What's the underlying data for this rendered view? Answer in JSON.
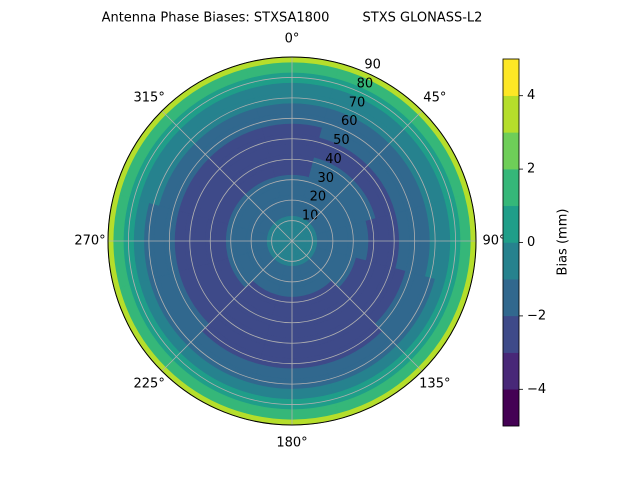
{
  "chart_data": {
    "type": "polar_contour",
    "title": "Antenna Phase Biases: STXSA1800        STXS GLONASS-L2",
    "zenith": [
      0,
      5,
      10,
      15,
      20,
      25,
      30,
      35,
      40,
      45,
      50,
      55,
      60,
      65,
      70,
      75,
      80,
      85,
      90
    ],
    "azimuth": [
      0,
      30,
      60,
      90,
      120,
      150,
      180,
      210,
      240,
      270,
      300,
      330
    ],
    "z": [
      [
        -0.5,
        -0.5,
        -0.5,
        -0.5,
        -0.5,
        -0.5,
        -0.5,
        -0.5,
        -0.5,
        -0.5,
        -0.5,
        -0.5
      ],
      [
        -0.6,
        -0.6,
        -0.6,
        -0.6,
        -0.6,
        -0.6,
        -0.6,
        -0.6,
        -0.6,
        -0.6,
        -0.6,
        -0.6
      ],
      [
        -0.8,
        -0.8,
        -0.8,
        -0.8,
        -0.8,
        -0.8,
        -0.8,
        -0.8,
        -0.8,
        -0.8,
        -0.8,
        -0.8
      ],
      [
        -1.1,
        -1.1,
        -1.1,
        -1.1,
        -1.1,
        -1.1,
        -1.1,
        -1.1,
        -1.1,
        -1.1,
        -1.1,
        -1.1
      ],
      [
        -1.4,
        -1.1,
        -1.1,
        -1.2,
        -1.5,
        -1.7,
        -1.7,
        -1.6,
        -1.5,
        -1.5,
        -1.4,
        -1.4
      ],
      [
        -1.7,
        -1.4,
        -1.4,
        -1.5,
        -1.8,
        -2.0,
        -2.0,
        -1.9,
        -1.8,
        -1.8,
        -1.7,
        -1.7
      ],
      [
        -1.9,
        -1.6,
        -1.6,
        -1.7,
        -2.0,
        -2.2,
        -2.2,
        -2.1,
        -2.0,
        -2.0,
        -1.9,
        -1.9
      ],
      [
        -2.1,
        -1.8,
        -1.8,
        -1.9,
        -2.2,
        -2.4,
        -2.4,
        -2.3,
        -2.2,
        -2.2,
        -2.1,
        -2.1
      ],
      [
        -2.3,
        -2.0,
        -2.0,
        -2.1,
        -2.4,
        -2.6,
        -2.6,
        -2.5,
        -2.4,
        -2.4,
        -2.3,
        -2.3
      ],
      [
        -2.5,
        -2.2,
        -2.2,
        -2.3,
        -2.6,
        -2.8,
        -2.8,
        -2.7,
        -2.6,
        -2.6,
        -2.5,
        -2.5
      ],
      [
        -2.4,
        -2.1,
        -2.1,
        -2.2,
        -2.5,
        -2.7,
        -2.7,
        -2.6,
        -2.5,
        -2.5,
        -2.4,
        -2.4
      ],
      [
        -2.2,
        -1.9,
        -1.9,
        -2.0,
        -2.3,
        -2.5,
        -2.5,
        -2.4,
        -2.3,
        -2.3,
        -2.2,
        -2.2
      ],
      [
        -1.9,
        -1.6,
        -1.6,
        -1.7,
        -2.0,
        -2.2,
        -2.2,
        -2.1,
        -2.0,
        -2.0,
        -1.9,
        -1.9
      ],
      [
        -1.5,
        -1.2,
        -1.2,
        -1.3,
        -1.6,
        -1.8,
        -1.8,
        -1.7,
        -1.6,
        -1.6,
        -1.5,
        -1.5
      ],
      [
        -1.0,
        -0.7,
        -0.7,
        -0.8,
        -1.1,
        -1.3,
        -1.3,
        -1.2,
        -1.1,
        -1.1,
        -1.0,
        -1.0
      ],
      [
        -0.3,
        -0.3,
        -0.3,
        -0.3,
        -0.3,
        -0.3,
        -0.3,
        -0.3,
        -0.3,
        -0.3,
        -0.3,
        -0.3
      ],
      [
        0.5,
        0.5,
        0.5,
        0.5,
        0.5,
        0.5,
        0.5,
        0.5,
        0.5,
        0.5,
        0.5,
        0.5
      ],
      [
        1.8,
        1.8,
        1.8,
        1.8,
        1.8,
        1.8,
        1.8,
        1.8,
        1.8,
        1.8,
        1.8,
        1.8
      ],
      [
        3.5,
        3.5,
        3.5,
        3.5,
        3.5,
        3.5,
        3.5,
        3.5,
        3.5,
        3.5,
        3.5,
        3.5
      ]
    ],
    "rlim": [
      0,
      90
    ],
    "rticks": [
      10,
      20,
      30,
      40,
      50,
      60,
      70,
      80,
      90
    ],
    "thetaticks": [
      {
        "value": 0,
        "label": "0°"
      },
      {
        "value": 45,
        "label": "45°"
      },
      {
        "value": 90,
        "label": "90°"
      },
      {
        "value": 135,
        "label": "135°"
      },
      {
        "value": 180,
        "label": "180°"
      },
      {
        "value": 225,
        "label": "225°"
      },
      {
        "value": 270,
        "label": "270°"
      },
      {
        "value": 315,
        "label": "315°"
      }
    ],
    "grid": true,
    "colorbar": {
      "label": "Bias (mm)",
      "levels": [
        -5,
        -4,
        -3,
        -2,
        -1,
        0,
        1,
        2,
        3,
        4,
        5
      ],
      "colors": [
        "#440154",
        "#482878",
        "#3e4a89",
        "#31688e",
        "#26828e",
        "#1f9e89",
        "#35b779",
        "#6ece58",
        "#b5de2b",
        "#fde725"
      ],
      "ticks": [
        {
          "value": -4,
          "label": "−4"
        },
        {
          "value": -2,
          "label": "−2"
        },
        {
          "value": 0,
          "label": "0"
        },
        {
          "value": 2,
          "label": "2"
        },
        {
          "value": 4,
          "label": "4"
        }
      ]
    }
  }
}
